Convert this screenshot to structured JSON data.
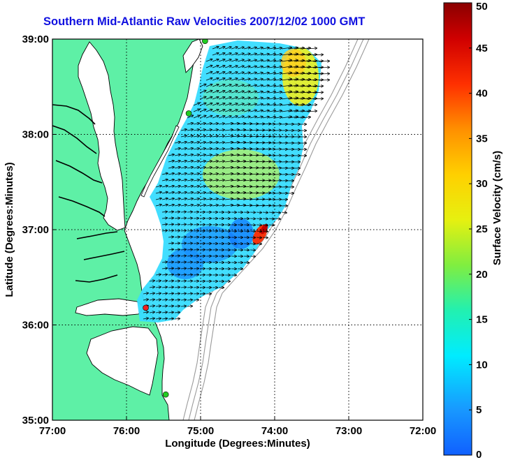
{
  "title": "Southern Mid-Atlantic Raw Velocities 2007/12/02 1000 GMT",
  "x_axis": {
    "label": "Longitude (Degrees:Minutes)",
    "ticks": [
      "77:00",
      "76:00",
      "75:00",
      "74:00",
      "73:00",
      "72:00"
    ],
    "values": [
      -77,
      -76,
      -75,
      -74,
      -73,
      -72
    ]
  },
  "y_axis": {
    "label": "Latitude (Degrees:Minutes)",
    "ticks": [
      "39:00",
      "38:00",
      "37:00",
      "36:00",
      "35:00"
    ],
    "values": [
      39,
      38,
      37,
      36,
      35
    ]
  },
  "colorbar": {
    "label": "Surface Velocity (cm/s)",
    "ticks": [
      "0",
      "5",
      "10",
      "15",
      "20",
      "25",
      "30",
      "35",
      "40",
      "45",
      "50"
    ],
    "min": 0,
    "max": 50
  },
  "colors": {
    "land": "#5ef0a6",
    "coastline": "#000000",
    "title": "#1010e0",
    "bathymetry": "#9a9a9a",
    "grid": "#000000"
  },
  "map": {
    "lon_range": [
      -77,
      -72
    ],
    "lat_range": [
      35,
      39
    ],
    "grid": "dotted",
    "vectors": "black arrows",
    "stations": [
      {
        "lon": -74.94,
        "lat": 38.98,
        "color": "#22cc22"
      },
      {
        "lon": -75.16,
        "lat": 38.22,
        "color": "#22cc22"
      },
      {
        "lon": -75.74,
        "lat": 36.18,
        "color": "#ee2222"
      },
      {
        "lon": -75.47,
        "lat": 35.27,
        "color": "#22cc22"
      }
    ]
  }
}
